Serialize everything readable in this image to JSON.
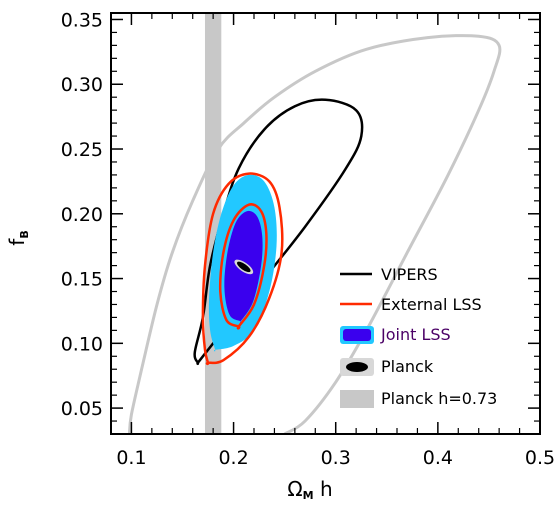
{
  "chart_data": {
    "type": "contour",
    "xlabel": {
      "main": "Ω",
      "sub": "M",
      "suffix": " h"
    },
    "ylabel": {
      "main": "f",
      "sub": "B"
    },
    "xlim": [
      0.08,
      0.5
    ],
    "ylim": [
      0.03,
      0.355
    ],
    "xticks": [
      0.1,
      0.2,
      0.3,
      0.4,
      0.5
    ],
    "xtick_labels": [
      "0.1",
      "0.2",
      "0.3",
      "0.4",
      "0.5"
    ],
    "yticks": [
      0.05,
      0.1,
      0.15,
      0.2,
      0.25,
      0.3,
      0.35
    ],
    "ytick_labels": [
      "0.05",
      "0.10",
      "0.15",
      "0.20",
      "0.25",
      "0.30",
      "0.35"
    ],
    "legend_position": "bottom-right",
    "series": [
      {
        "name": "VIPERS",
        "style": "line",
        "color": "#000000",
        "contours": [
          [
            [
              0.165,
              0.085
            ],
            [
              0.17,
              0.09
            ],
            [
              0.19,
              0.11
            ],
            [
              0.225,
              0.145
            ],
            [
              0.27,
              0.19
            ],
            [
              0.31,
              0.235
            ],
            [
              0.325,
              0.26
            ],
            [
              0.32,
              0.28
            ],
            [
              0.29,
              0.288
            ],
            [
              0.26,
              0.283
            ],
            [
              0.23,
              0.265
            ],
            [
              0.205,
              0.235
            ],
            [
              0.19,
              0.2
            ],
            [
              0.177,
              0.16
            ],
            [
              0.17,
              0.12
            ],
            [
              0.162,
              0.093
            ],
            [
              0.165,
              0.085
            ]
          ]
        ]
      },
      {
        "name": "External LSS",
        "style": "line",
        "color": "#ff2a00",
        "contours": [
          [
            [
              0.175,
              0.085
            ],
            [
              0.19,
              0.087
            ],
            [
              0.215,
              0.105
            ],
            [
              0.235,
              0.135
            ],
            [
              0.247,
              0.17
            ],
            [
              0.245,
              0.205
            ],
            [
              0.235,
              0.225
            ],
            [
              0.215,
              0.231
            ],
            [
              0.195,
              0.223
            ],
            [
              0.18,
              0.2
            ],
            [
              0.172,
              0.16
            ],
            [
              0.17,
              0.12
            ],
            [
              0.172,
              0.095
            ],
            [
              0.175,
              0.085
            ]
          ],
          [
            [
              0.205,
              0.113
            ],
            [
              0.22,
              0.13
            ],
            [
              0.23,
              0.16
            ],
            [
              0.232,
              0.185
            ],
            [
              0.227,
              0.202
            ],
            [
              0.215,
              0.207
            ],
            [
              0.2,
              0.195
            ],
            [
              0.19,
              0.17
            ],
            [
              0.187,
              0.14
            ],
            [
              0.193,
              0.118
            ],
            [
              0.205,
              0.113
            ]
          ]
        ]
      },
      {
        "name": "Joint LSS",
        "style": "fill",
        "color": "#3a00ee",
        "outer_color": "#22c8ff",
        "contours": [
          [
            [
              0.182,
              0.095
            ],
            [
              0.2,
              0.098
            ],
            [
              0.22,
              0.11
            ],
            [
              0.235,
              0.14
            ],
            [
              0.242,
              0.175
            ],
            [
              0.24,
              0.205
            ],
            [
              0.23,
              0.225
            ],
            [
              0.215,
              0.23
            ],
            [
              0.2,
              0.222
            ],
            [
              0.188,
              0.2
            ],
            [
              0.18,
              0.17
            ],
            [
              0.176,
              0.135
            ],
            [
              0.177,
              0.11
            ],
            [
              0.182,
              0.095
            ]
          ],
          [
            [
              0.207,
              0.117
            ],
            [
              0.219,
              0.132
            ],
            [
              0.227,
              0.16
            ],
            [
              0.228,
              0.183
            ],
            [
              0.223,
              0.198
            ],
            [
              0.213,
              0.202
            ],
            [
              0.202,
              0.193
            ],
            [
              0.194,
              0.17
            ],
            [
              0.191,
              0.143
            ],
            [
              0.196,
              0.122
            ],
            [
              0.207,
              0.117
            ]
          ]
        ]
      },
      {
        "name": "Planck",
        "style": "fill",
        "color": "#000000",
        "outer_color": "#d8d8d8",
        "center": [
          0.21,
          0.159
        ],
        "contours": []
      },
      {
        "name": "Planck h=0.73",
        "style": "band",
        "color": "#c8c8c8",
        "x_range": [
          0.172,
          0.188
        ]
      },
      {
        "name": "",
        "style": "line",
        "color": "#c8c8c8",
        "contours": [
          [
            [
              0.098,
              0.03
            ],
            [
              0.1,
              0.045
            ],
            [
              0.11,
              0.08
            ],
            [
              0.125,
              0.13
            ],
            [
              0.14,
              0.17
            ],
            [
              0.16,
              0.21
            ],
            [
              0.185,
              0.25
            ],
            [
              0.21,
              0.27
            ],
            [
              0.24,
              0.29
            ],
            [
              0.28,
              0.31
            ],
            [
              0.33,
              0.327
            ],
            [
              0.39,
              0.336
            ],
            [
              0.44,
              0.337
            ],
            [
              0.46,
              0.33
            ],
            [
              0.455,
              0.31
            ],
            [
              0.44,
              0.28
            ],
            [
              0.41,
              0.23
            ],
            [
              0.37,
              0.17
            ],
            [
              0.33,
              0.11
            ],
            [
              0.3,
              0.07
            ],
            [
              0.27,
              0.04
            ],
            [
              0.25,
              0.03
            ]
          ]
        ]
      }
    ]
  }
}
